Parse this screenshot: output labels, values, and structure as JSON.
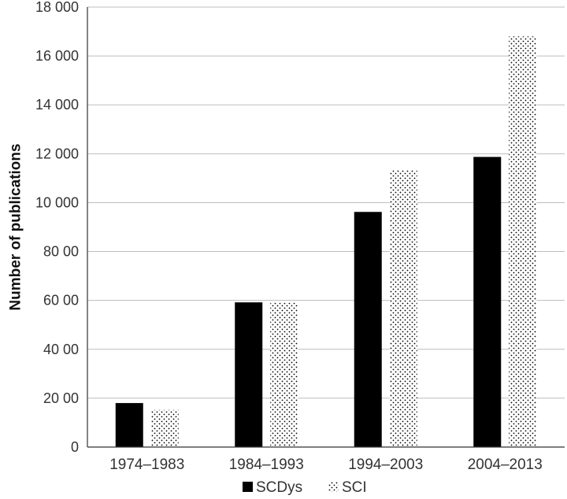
{
  "chart_data": {
    "type": "bar",
    "categories": [
      "1974–1983",
      "1984–1993",
      "1994–2003",
      "2004–2013"
    ],
    "series": [
      {
        "name": "SCDys",
        "values": [
          1800,
          5920,
          9620,
          11870
        ],
        "color": "#000000",
        "pattern": "solid"
      },
      {
        "name": "SCI",
        "values": [
          1520,
          5900,
          11350,
          16800
        ],
        "color": "#000000",
        "pattern": "dotted"
      }
    ],
    "ylabel": "Number of publications",
    "xlabel": "",
    "ylim": [
      0,
      18000
    ],
    "yticks": [
      0,
      2000,
      4000,
      6000,
      8000,
      10000,
      12000,
      14000,
      16000,
      18000
    ],
    "ytick_labels": [
      "0",
      "20 00",
      "40 00",
      "60 00",
      "80 00",
      "10 000",
      "12 000",
      "14 000",
      "16 000",
      "18 000"
    ],
    "grid": true,
    "legend_position": "bottom"
  }
}
